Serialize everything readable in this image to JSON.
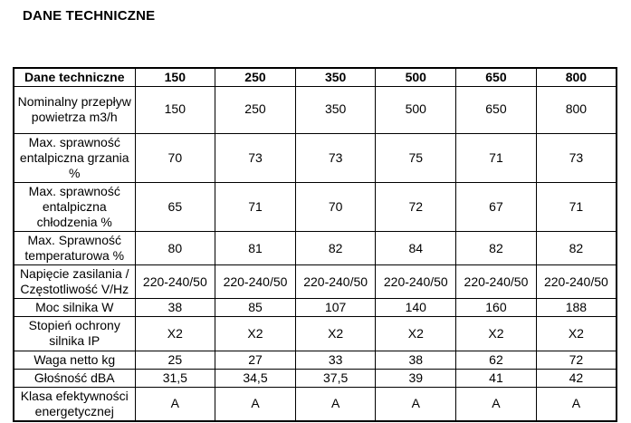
{
  "page": {
    "title": "DANE TECHNICZNE"
  },
  "colors": {
    "background": "#ffffff",
    "text": "#000000",
    "border": "#000000"
  },
  "table": {
    "header": [
      "Dane techniczne",
      "150",
      "250",
      "350",
      "500",
      "650",
      "800"
    ],
    "rows": [
      {
        "label": "Nominalny przepływ powietrza m3/h",
        "values": [
          "150",
          "250",
          "350",
          "500",
          "650",
          "800"
        ]
      },
      {
        "label": "Max. sprawność entalpiczna grzania %",
        "values": [
          "70",
          "73",
          "73",
          "75",
          "71",
          "73"
        ]
      },
      {
        "label": "Max. sprawność entalpiczna chłodzenia %",
        "values": [
          "65",
          "71",
          "70",
          "72",
          "67",
          "71"
        ]
      },
      {
        "label": "Max. Sprawność temperaturowa %",
        "values": [
          "80",
          "81",
          "82",
          "84",
          "82",
          "82"
        ]
      },
      {
        "label": "Napięcie zasilania / Częstotliwość V/Hz",
        "values": [
          "220-240/50",
          "220-240/50",
          "220-240/50",
          "220-240/50",
          "220-240/50",
          "220-240/50"
        ]
      },
      {
        "label": "Moc silnika W",
        "values": [
          "38",
          "85",
          "107",
          "140",
          "160",
          "188"
        ]
      },
      {
        "label": "Stopień ochrony silnika IP",
        "values": [
          "X2",
          "X2",
          "X2",
          "X2",
          "X2",
          "X2"
        ]
      },
      {
        "label": "Waga netto kg",
        "values": [
          "25",
          "27",
          "33",
          "38",
          "62",
          "72"
        ]
      },
      {
        "label": "Głośność dBA",
        "values": [
          "31,5",
          "34,5",
          "37,5",
          "39",
          "41",
          "42"
        ]
      },
      {
        "label": "Klasa efektywności energetycznej",
        "values": [
          "A",
          "A",
          "A",
          "A",
          "A",
          "A"
        ]
      }
    ]
  }
}
